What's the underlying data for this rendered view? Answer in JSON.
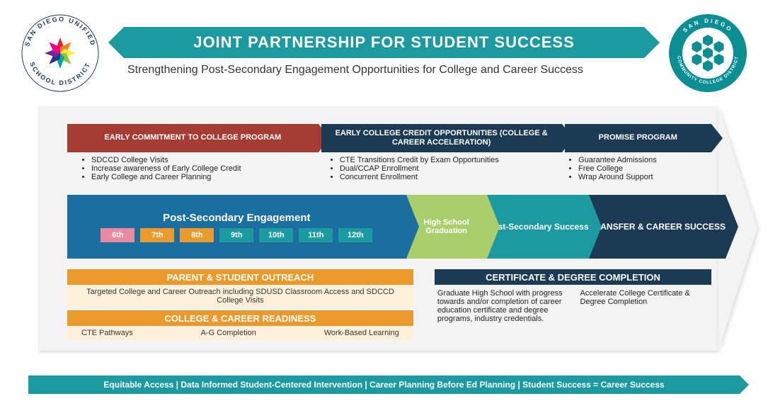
{
  "colors": {
    "teal": "#1b9aa0",
    "navy": "#1b3a53",
    "blue": "#1b6fa0",
    "red": "#a43c34",
    "orange": "#e99a2a",
    "orange_light": "#fff0d9",
    "green_light": "#a9cf6c",
    "grey_bg": "#f3f3f3",
    "white": "#ffffff",
    "text": "#222222"
  },
  "header": {
    "title": "JOINT PARTNERSHIP FOR STUDENT SUCCESS",
    "subtitle": "Strengthening Post-Secondary Engagement Opportunities for College and Career Success",
    "logo_left_text_top": "SAN DIEGO UNIFIED",
    "logo_left_text_bottom": "SCHOOL DISTRICT",
    "logo_right_text_top": "SAN DIEGO",
    "logo_right_text_bottom": "COMMUNITY COLLEGE DISTRICT"
  },
  "programs": {
    "p1": {
      "label": "EARLY COMMITMENT TO COLLEGE PROGRAM",
      "bullets": [
        "SDCCD College Visits",
        "Increase awareness of Early College Credit",
        "Early College and Career Planning"
      ]
    },
    "p2": {
      "label": "EARLY COLLEGE CREDIT OPPORTUNITIES (COLLEGE & CAREER ACCELERATION)",
      "bullets": [
        "CTE Transitions Credit by Exam Opportunities",
        "Dual/CCAP Enrollment",
        "Concurrent Enrollment"
      ]
    },
    "p3": {
      "label": "PROMISE PROGRAM",
      "bullets": [
        "Guarantee Admissions",
        "Free College",
        "Wrap Around Support"
      ]
    }
  },
  "timeline": {
    "engage_label": "Post-Secondary Engagement",
    "grades": [
      {
        "label": "6th",
        "bg": "#e98aa0"
      },
      {
        "label": "7th",
        "bg": "#e99a2a"
      },
      {
        "label": "8th",
        "bg": "#e99a2a"
      },
      {
        "label": "9th",
        "bg": "#1b9aa0"
      },
      {
        "label": "10th",
        "bg": "#1b9aa0"
      },
      {
        "label": "11th",
        "bg": "#1b9aa0"
      },
      {
        "label": "12th",
        "bg": "#1b9aa0"
      }
    ],
    "grad": "High School Graduation",
    "success": "Post-Secondary Success",
    "transfer": "TRANSFER & CAREER SUCCESS"
  },
  "bottom": {
    "outreach_h": "PARENT & STUDENT OUTREACH",
    "outreach_b": "Targeted College and Career Outreach including SDUSD Classroom Access and SDCCD College Visits",
    "readiness_h": "COLLEGE & CAREER READINESS",
    "readiness_items": [
      "CTE Pathways",
      "A-G Completion",
      "Work-Based Learning"
    ],
    "completion_h": "CERTIFICATE & DEGREE COMPLETION",
    "completion_c1": "Graduate High School with progress towards and/or completion of career education certificate and degree programs, industry credentials.",
    "completion_c2": "Accelerate College Certificate & Degree Completion"
  },
  "footer": "Equitable Access | Data Informed Student-Centered Intervention | Career Planning Before Ed Planning | Student Success = Career Success"
}
